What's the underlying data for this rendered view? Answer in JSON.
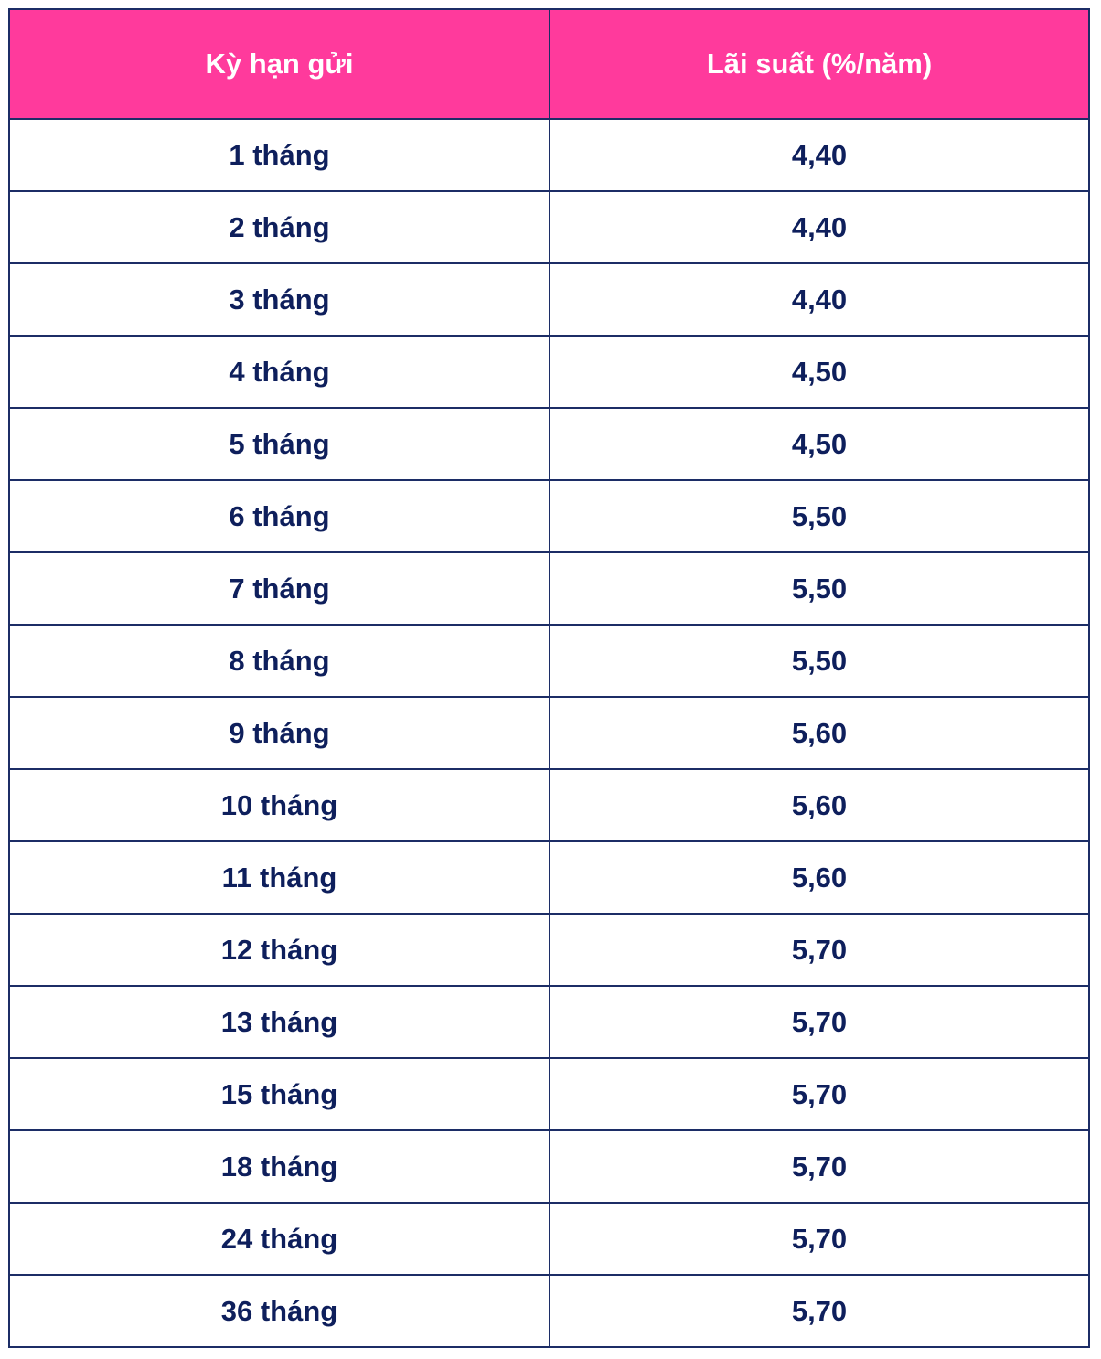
{
  "table": {
    "headers": [
      "Kỳ hạn gửi",
      "Lãi suất (%/năm)"
    ],
    "rows": [
      [
        "1 tháng",
        "4,40"
      ],
      [
        "2 tháng",
        "4,40"
      ],
      [
        "3 tháng",
        "4,40"
      ],
      [
        "4 tháng",
        "4,50"
      ],
      [
        "5 tháng",
        "4,50"
      ],
      [
        "6 tháng",
        "5,50"
      ],
      [
        "7 tháng",
        "5,50"
      ],
      [
        "8 tháng",
        "5,50"
      ],
      [
        "9 tháng",
        "5,60"
      ],
      [
        "10 tháng",
        "5,60"
      ],
      [
        "11 tháng",
        "5,60"
      ],
      [
        "12 tháng",
        "5,70"
      ],
      [
        "13 tháng",
        "5,70"
      ],
      [
        "15 tháng",
        "5,70"
      ],
      [
        "18 tháng",
        "5,70"
      ],
      [
        "24 tháng",
        "5,70"
      ],
      [
        "36 tháng",
        "5,70"
      ]
    ]
  },
  "colors": {
    "header_bg": "#ff3a9c",
    "border": "#1c2d66",
    "text": "#0e1f5c"
  }
}
